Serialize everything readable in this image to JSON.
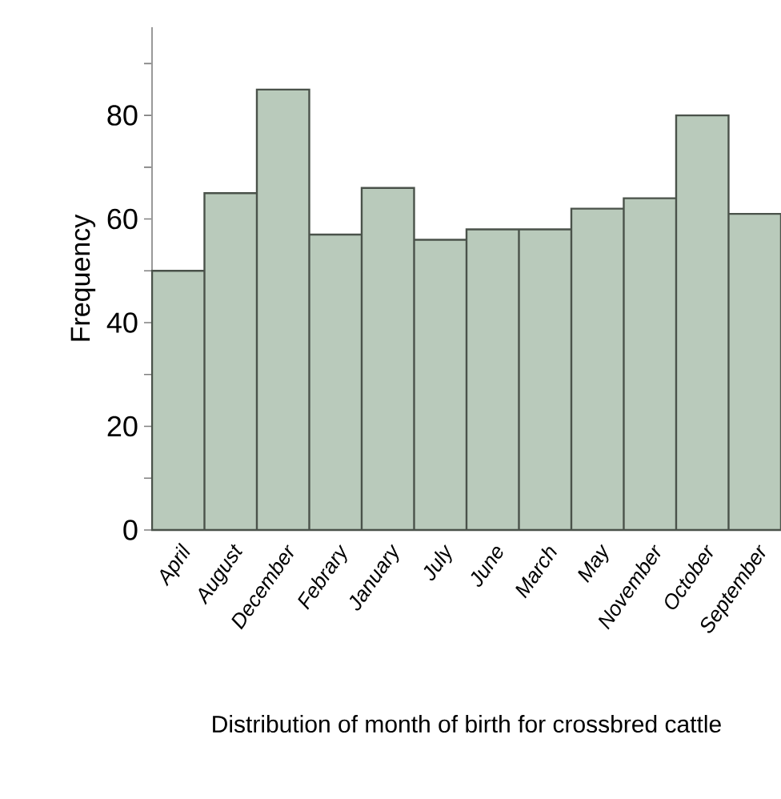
{
  "chart_data": {
    "type": "bar",
    "xlabel": "Distribution of month of birth for crossbred cattle",
    "ylabel": "Frequency",
    "categories": [
      "April",
      "August",
      "December",
      "Febrary",
      "January",
      "July",
      "June",
      "March",
      "May",
      "November",
      "October",
      "September"
    ],
    "values": [
      50,
      65,
      85,
      57,
      66,
      56,
      58,
      58,
      62,
      64,
      80,
      61
    ],
    "color": "#b9cabb",
    "ylim": [
      0,
      97
    ],
    "yticks": [
      0,
      {
        "value": 10,
        "label": null
      },
      20,
      {
        "value": 30,
        "label": null
      },
      40,
      {
        "value": 50,
        "label": null
      },
      60,
      {
        "value": 70,
        "label": null
      },
      80,
      {
        "value": 90,
        "label": null
      }
    ],
    "grid": false
  }
}
